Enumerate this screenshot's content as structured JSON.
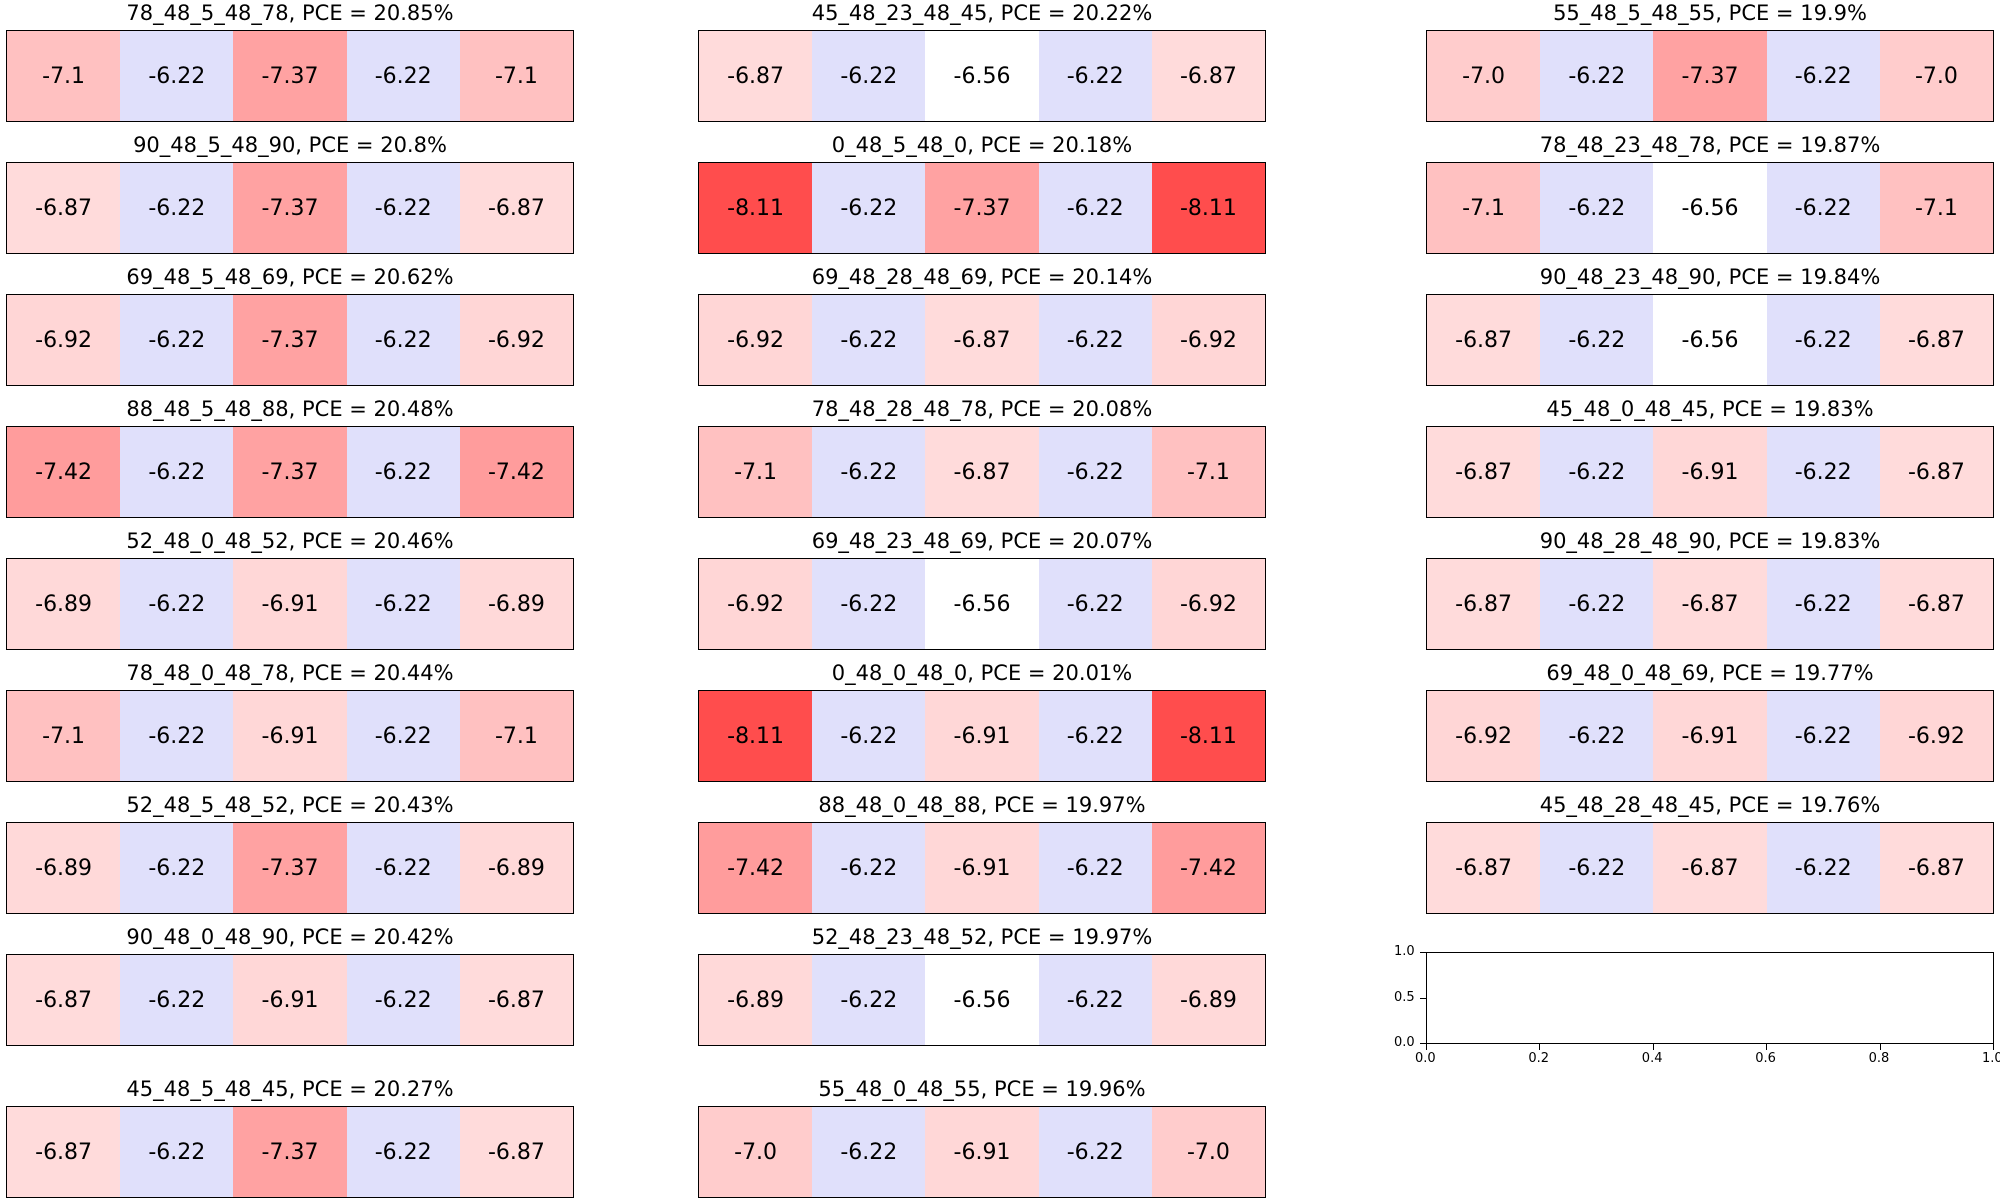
{
  "chart_data": {
    "type": "heatmap",
    "color_scale": {
      "low_color": "#ff4d4d",
      "mid_color": "#ffffff",
      "high_color": "#e0e0fb",
      "mid_value": -6.56,
      "min_value": -8.11,
      "max_value": -6.22
    },
    "panels": [
      {
        "title": "78_48_5_48_78, PCE = 20.85%",
        "values": [
          "-7.1",
          "-6.22",
          "-7.37",
          "-6.22",
          "-7.1"
        ]
      },
      {
        "title": "90_48_5_48_90, PCE = 20.8%",
        "values": [
          "-6.87",
          "-6.22",
          "-7.37",
          "-6.22",
          "-6.87"
        ]
      },
      {
        "title": "69_48_5_48_69, PCE = 20.62%",
        "values": [
          "-6.92",
          "-6.22",
          "-7.37",
          "-6.22",
          "-6.92"
        ]
      },
      {
        "title": "88_48_5_48_88, PCE = 20.48%",
        "values": [
          "-7.42",
          "-6.22",
          "-7.37",
          "-6.22",
          "-7.42"
        ]
      },
      {
        "title": "52_48_0_48_52, PCE = 20.46%",
        "values": [
          "-6.89",
          "-6.22",
          "-6.91",
          "-6.22",
          "-6.89"
        ]
      },
      {
        "title": "78_48_0_48_78, PCE = 20.44%",
        "values": [
          "-7.1",
          "-6.22",
          "-6.91",
          "-6.22",
          "-7.1"
        ]
      },
      {
        "title": "52_48_5_48_52, PCE = 20.43%",
        "values": [
          "-6.89",
          "-6.22",
          "-7.37",
          "-6.22",
          "-6.89"
        ]
      },
      {
        "title": "90_48_0_48_90, PCE = 20.42%",
        "values": [
          "-6.87",
          "-6.22",
          "-6.91",
          "-6.22",
          "-6.87"
        ]
      },
      {
        "title": "45_48_5_48_45, PCE = 20.27%",
        "values": [
          "-6.87",
          "-6.22",
          "-7.37",
          "-6.22",
          "-6.87"
        ]
      },
      {
        "title": "45_48_23_48_45, PCE = 20.22%",
        "values": [
          "-6.87",
          "-6.22",
          "-6.56",
          "-6.22",
          "-6.87"
        ]
      },
      {
        "title": "0_48_5_48_0, PCE = 20.18%",
        "values": [
          "-8.11",
          "-6.22",
          "-7.37",
          "-6.22",
          "-8.11"
        ]
      },
      {
        "title": "69_48_28_48_69, PCE = 20.14%",
        "values": [
          "-6.92",
          "-6.22",
          "-6.87",
          "-6.22",
          "-6.92"
        ]
      },
      {
        "title": "78_48_28_48_78, PCE = 20.08%",
        "values": [
          "-7.1",
          "-6.22",
          "-6.87",
          "-6.22",
          "-7.1"
        ]
      },
      {
        "title": "69_48_23_48_69, PCE = 20.07%",
        "values": [
          "-6.92",
          "-6.22",
          "-6.56",
          "-6.22",
          "-6.92"
        ]
      },
      {
        "title": "0_48_0_48_0, PCE = 20.01%",
        "values": [
          "-8.11",
          "-6.22",
          "-6.91",
          "-6.22",
          "-8.11"
        ]
      },
      {
        "title": "88_48_0_48_88, PCE = 19.97%",
        "values": [
          "-7.42",
          "-6.22",
          "-6.91",
          "-6.22",
          "-7.42"
        ]
      },
      {
        "title": "52_48_23_48_52, PCE = 19.97%",
        "values": [
          "-6.89",
          "-6.22",
          "-6.56",
          "-6.22",
          "-6.89"
        ]
      },
      {
        "title": "55_48_0_48_55, PCE = 19.96%",
        "values": [
          "-7.0",
          "-6.22",
          "-6.91",
          "-6.22",
          "-7.0"
        ]
      },
      {
        "title": "55_48_5_48_55, PCE = 19.9%",
        "values": [
          "-7.0",
          "-6.22",
          "-7.37",
          "-6.22",
          "-7.0"
        ]
      },
      {
        "title": "78_48_23_48_78, PCE = 19.87%",
        "values": [
          "-7.1",
          "-6.22",
          "-6.56",
          "-6.22",
          "-7.1"
        ]
      },
      {
        "title": "90_48_23_48_90, PCE = 19.84%",
        "values": [
          "-6.87",
          "-6.22",
          "-6.56",
          "-6.22",
          "-6.87"
        ]
      },
      {
        "title": "45_48_0_48_45, PCE = 19.83%",
        "values": [
          "-6.87",
          "-6.22",
          "-6.91",
          "-6.22",
          "-6.87"
        ]
      },
      {
        "title": "90_48_28_48_90, PCE = 19.83%",
        "values": [
          "-6.87",
          "-6.22",
          "-6.87",
          "-6.22",
          "-6.87"
        ]
      },
      {
        "title": "69_48_0_48_69, PCE = 19.77%",
        "values": [
          "-6.92",
          "-6.22",
          "-6.91",
          "-6.22",
          "-6.92"
        ]
      },
      {
        "title": "45_48_28_48_45, PCE = 19.76%",
        "values": [
          "-6.87",
          "-6.22",
          "-6.87",
          "-6.22",
          "-6.87"
        ]
      }
    ],
    "empty_axes": {
      "xlim": [
        0.0,
        1.0
      ],
      "ylim": [
        0.0,
        1.0
      ],
      "xticks": [
        "0.0",
        "0.2",
        "0.4",
        "0.6",
        "0.8",
        "1.0"
      ],
      "yticks": [
        "0.0",
        "0.5",
        "1.0"
      ]
    }
  }
}
